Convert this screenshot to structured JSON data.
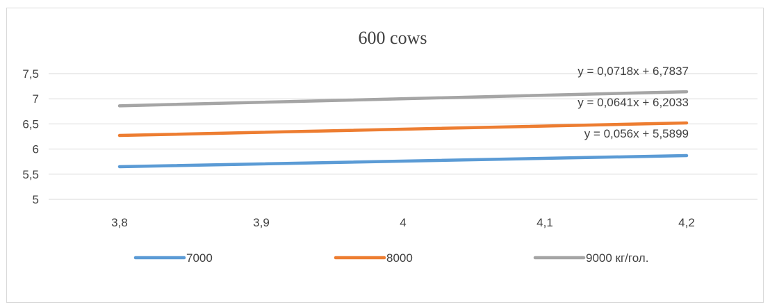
{
  "chart_data": {
    "type": "line",
    "title": "600 cows",
    "xlabel": "",
    "ylabel": "",
    "x": [
      3.8,
      4.2
    ],
    "x_tick_labels": [
      "3,8",
      "3,9",
      "4",
      "4,1",
      "4,2"
    ],
    "x_ticks": [
      3.8,
      3.9,
      4.0,
      4.1,
      4.2
    ],
    "y_tick_labels": [
      "5",
      "5,5",
      "6",
      "6,5",
      "7",
      "7,5"
    ],
    "y_ticks": [
      5,
      5.5,
      6,
      6.5,
      7,
      7.5
    ],
    "ylim": [
      5,
      7.5
    ],
    "grid": true,
    "legend_position": "bottom",
    "series": [
      {
        "name": "7000",
        "color": "#5b9bd5",
        "values": [
          5.65,
          5.87
        ],
        "equation": "y = 0,056x + 5,5899"
      },
      {
        "name": "8000",
        "color": "#ed7d31",
        "values": [
          6.27,
          6.52
        ],
        "equation": "y = 0,0641x + 6,2033"
      },
      {
        "name": "9000 кг/гол.",
        "color": "#a5a5a5",
        "values": [
          6.86,
          7.14
        ],
        "equation": "y = 0,0718x + 6,7837"
      }
    ]
  }
}
